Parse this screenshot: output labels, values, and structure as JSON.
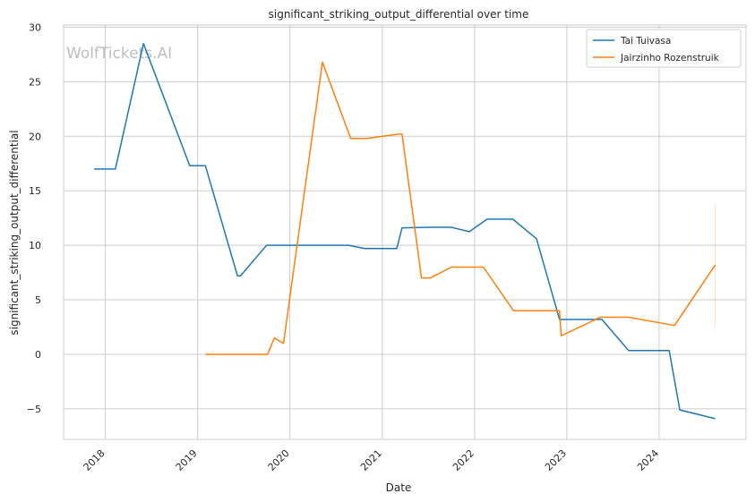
{
  "chart_data": {
    "type": "line",
    "title": "significant_striking_output_differential over time",
    "xlabel": "Date",
    "ylabel": "significant_striking_output_differential",
    "watermark": "WolfTickets.AI",
    "xlim": [
      "2017-07-20",
      "2024-12-10"
    ],
    "ylim": [
      -7.8,
      30.2
    ],
    "x_ticks": [
      "2018",
      "2019",
      "2020",
      "2021",
      "2022",
      "2023",
      "2024"
    ],
    "y_ticks": [
      -5,
      0,
      5,
      10,
      15,
      20,
      25,
      30
    ],
    "y_tick_labels": [
      "−5",
      "0",
      "5",
      "10",
      "15",
      "20",
      "25",
      "30"
    ],
    "grid": true,
    "legend_position": "top-right",
    "series": [
      {
        "name": "Tai Tuivasa",
        "color": "#1f77b4",
        "points": [
          [
            "2017-11-18",
            17.0
          ],
          [
            "2018-02-10",
            17.0
          ],
          [
            "2018-06-01",
            28.5
          ],
          [
            "2018-12-01",
            17.3
          ],
          [
            "2019-02-01",
            17.3
          ],
          [
            "2019-06-08",
            7.2
          ],
          [
            "2019-06-20",
            7.2
          ],
          [
            "2019-10-01",
            10.0
          ],
          [
            "2020-08-20",
            10.0
          ],
          [
            "2020-10-24",
            9.7
          ],
          [
            "2021-02-27",
            9.7
          ],
          [
            "2021-03-20",
            11.6
          ],
          [
            "2021-07-10",
            11.65
          ],
          [
            "2021-10-01",
            11.65
          ],
          [
            "2021-12-11",
            11.25
          ],
          [
            "2022-02-20",
            12.4
          ],
          [
            "2022-06-01",
            12.4
          ],
          [
            "2022-09-03",
            10.6
          ],
          [
            "2022-12-03",
            3.2
          ],
          [
            "2023-05-20",
            3.2
          ],
          [
            "2023-09-02",
            0.35
          ],
          [
            "2024-02-10",
            0.35
          ],
          [
            "2024-03-23",
            -5.1
          ],
          [
            "2024-08-10",
            -5.9
          ]
        ]
      },
      {
        "name": "Jairzinho Rozenstruik",
        "color": "#ff7f0e",
        "points": [
          [
            "2019-02-02",
            0.0
          ],
          [
            "2019-10-05",
            0.0
          ],
          [
            "2019-11-01",
            1.5
          ],
          [
            "2019-12-07",
            1.0
          ],
          [
            "2020-05-09",
            26.8
          ],
          [
            "2020-08-29",
            19.8
          ],
          [
            "2020-10-31",
            19.8
          ],
          [
            "2021-03-06",
            20.2
          ],
          [
            "2021-03-20",
            20.2
          ],
          [
            "2021-06-05",
            7.0
          ],
          [
            "2021-07-10",
            7.0
          ],
          [
            "2021-10-01",
            8.0
          ],
          [
            "2022-02-05",
            8.0
          ],
          [
            "2022-06-04",
            4.0
          ],
          [
            "2022-12-03",
            4.0
          ],
          [
            "2022-12-10",
            1.7
          ],
          [
            "2023-05-13",
            3.4
          ],
          [
            "2023-09-01",
            3.4
          ],
          [
            "2024-03-02",
            2.65
          ],
          [
            "2024-08-10",
            8.2
          ]
        ],
        "band": {
          "x": "2024-08-10",
          "low": 2.5,
          "high": 13.8
        }
      }
    ]
  }
}
